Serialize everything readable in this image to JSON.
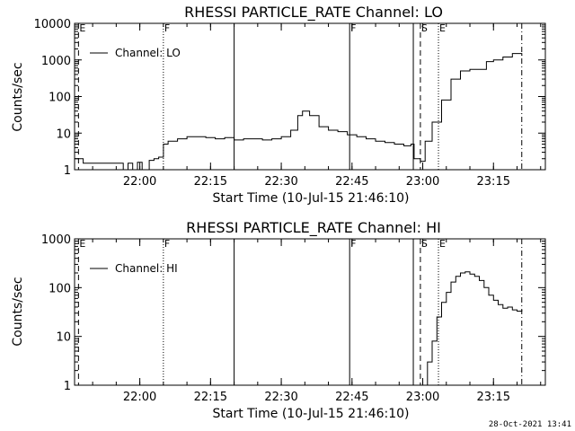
{
  "footer_timestamp": "28-Oct-2021 13:41",
  "chart_data": [
    {
      "type": "line",
      "title": "RHESSI PARTICLE_RATE Channel: LO",
      "xlabel": "Start Time (10-Jul-15 21:46:10)",
      "ylabel": "Counts/sec",
      "y_scale": "log",
      "ylim": [
        1,
        10000
      ],
      "xlim": [
        "21:46:10",
        "23:26:00"
      ],
      "x_ticks": [
        "22:00",
        "22:15",
        "22:30",
        "22:45",
        "23:00",
        "23:15"
      ],
      "y_ticks": [
        "1",
        "10",
        "100",
        "1000",
        "10000"
      ],
      "legend": {
        "placement": "top-left",
        "entries": [
          "Channel: LO"
        ]
      },
      "markers": [
        {
          "label": "E",
          "time": "21:47:00",
          "style": "dashed"
        },
        {
          "label": "F",
          "time": "22:05:00",
          "style": "dotted"
        },
        {
          "label": "",
          "time": "22:20:00",
          "style": "solid"
        },
        {
          "label": "F",
          "time": "22:44:30",
          "style": "solid"
        },
        {
          "label": "",
          "time": "22:58:00",
          "style": "solid"
        },
        {
          "label": "S",
          "time": "22:59:30",
          "style": "dashed"
        },
        {
          "label": "E",
          "time": "23:03:20",
          "style": "dotted"
        },
        {
          "label": "",
          "time": "23:21:00",
          "style": "dashdot"
        }
      ],
      "series": [
        {
          "name": "Channel: LO",
          "points": [
            [
              "21:46:10",
              2
            ],
            [
              "21:48:00",
              1.5
            ],
            [
              "21:50:00",
              1.5
            ],
            [
              "21:52:00",
              1.5
            ],
            [
              "21:54:00",
              1.5
            ],
            [
              "21:55:30",
              1.5
            ],
            [
              "21:56:30",
              0.8
            ],
            [
              "21:57:30",
              1.5
            ],
            [
              "21:58:30",
              0.8
            ],
            [
              "21:59:30",
              1.6
            ],
            [
              "22:00:30",
              0.8
            ],
            [
              "22:02:00",
              1.8
            ],
            [
              "22:03:00",
              2.0
            ],
            [
              "22:04:00",
              2.2
            ],
            [
              "22:05:00",
              5
            ],
            [
              "22:06:00",
              6
            ],
            [
              "22:08:00",
              7
            ],
            [
              "22:10:00",
              8
            ],
            [
              "22:12:00",
              8
            ],
            [
              "22:14:00",
              7.5
            ],
            [
              "22:16:00",
              7
            ],
            [
              "22:18:00",
              7.5
            ],
            [
              "22:20:00",
              6.5
            ],
            [
              "22:22:00",
              7
            ],
            [
              "22:24:00",
              7
            ],
            [
              "22:26:00",
              6.5
            ],
            [
              "22:28:00",
              7
            ],
            [
              "22:30:00",
              8
            ],
            [
              "22:32:00",
              12
            ],
            [
              "22:33:30",
              30
            ],
            [
              "22:34:30",
              40
            ],
            [
              "22:36:00",
              30
            ],
            [
              "22:38:00",
              15
            ],
            [
              "22:40:00",
              12
            ],
            [
              "22:42:00",
              11
            ],
            [
              "22:44:00",
              9
            ],
            [
              "22:46:00",
              8
            ],
            [
              "22:48:00",
              7
            ],
            [
              "22:50:00",
              6
            ],
            [
              "22:52:00",
              5.5
            ],
            [
              "22:54:00",
              5
            ],
            [
              "22:56:00",
              4.5
            ],
            [
              "22:57:30",
              5
            ],
            [
              "22:58:10",
              2
            ],
            [
              "22:59:30",
              1.7
            ],
            [
              "23:00:30",
              6
            ],
            [
              "23:02:00",
              20
            ],
            [
              "23:04:00",
              80
            ],
            [
              "23:06:00",
              300
            ],
            [
              "23:08:00",
              500
            ],
            [
              "23:10:00",
              550
            ],
            [
              "23:12:00",
              550
            ],
            [
              "23:13:30",
              900
            ],
            [
              "23:15:00",
              1000
            ],
            [
              "23:17:00",
              1200
            ],
            [
              "23:19:00",
              1500
            ],
            [
              "23:21:00",
              1300
            ]
          ]
        }
      ]
    },
    {
      "type": "line",
      "title": "RHESSI PARTICLE_RATE Channel: HI",
      "xlabel": "Start Time (10-Jul-15 21:46:10)",
      "ylabel": "Counts/sec",
      "y_scale": "log",
      "ylim": [
        1,
        1000
      ],
      "xlim": [
        "21:46:10",
        "23:26:00"
      ],
      "x_ticks": [
        "22:00",
        "22:15",
        "22:30",
        "22:45",
        "23:00",
        "23:15"
      ],
      "y_ticks": [
        "1",
        "10",
        "100",
        "1000"
      ],
      "legend": {
        "placement": "top-left",
        "entries": [
          "Channel: HI"
        ]
      },
      "markers": [
        {
          "label": "E",
          "time": "21:47:00",
          "style": "dashed"
        },
        {
          "label": "F",
          "time": "22:05:00",
          "style": "dotted"
        },
        {
          "label": "",
          "time": "22:20:00",
          "style": "solid"
        },
        {
          "label": "F",
          "time": "22:44:30",
          "style": "solid"
        },
        {
          "label": "",
          "time": "22:58:00",
          "style": "solid"
        },
        {
          "label": "S",
          "time": "22:59:30",
          "style": "dashed"
        },
        {
          "label": "E",
          "time": "23:03:20",
          "style": "dotted"
        },
        {
          "label": "",
          "time": "23:21:00",
          "style": "dashdot"
        }
      ],
      "series": [
        {
          "name": "Channel: HI",
          "points": [
            [
              "23:00:00",
              1
            ],
            [
              "23:01:00",
              3
            ],
            [
              "23:02:00",
              8
            ],
            [
              "23:03:00",
              25
            ],
            [
              "23:04:00",
              50
            ],
            [
              "23:05:00",
              80
            ],
            [
              "23:06:00",
              130
            ],
            [
              "23:07:00",
              170
            ],
            [
              "23:08:00",
              200
            ],
            [
              "23:09:00",
              210
            ],
            [
              "23:10:00",
              190
            ],
            [
              "23:11:00",
              170
            ],
            [
              "23:12:00",
              140
            ],
            [
              "23:13:00",
              100
            ],
            [
              "23:14:00",
              70
            ],
            [
              "23:15:00",
              55
            ],
            [
              "23:16:00",
              45
            ],
            [
              "23:17:00",
              38
            ],
            [
              "23:18:00",
              40
            ],
            [
              "23:19:00",
              35
            ],
            [
              "23:20:00",
              33
            ],
            [
              "23:21:00",
              35
            ]
          ]
        }
      ]
    }
  ]
}
